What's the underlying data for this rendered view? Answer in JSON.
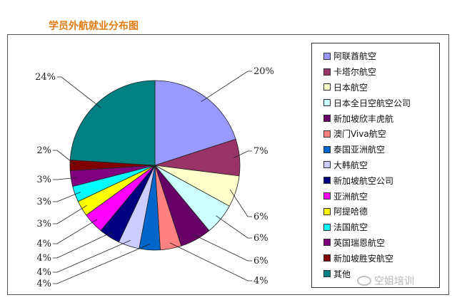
{
  "chart_data": {
    "type": "pie",
    "title": "学员外航就业分布图",
    "slices": [
      {
        "label": "阿联酋航空",
        "value": 20,
        "value_label": "20%",
        "color": "#9999ff"
      },
      {
        "label": "卡塔尔航空",
        "value": 7,
        "value_label": "7%",
        "color": "#993366"
      },
      {
        "label": "日本航空",
        "value": 6,
        "value_label": "6%",
        "color": "#ffffcc"
      },
      {
        "label": "日本全日空航空公司",
        "value": 6,
        "value_label": "6%",
        "color": "#ccffff"
      },
      {
        "label": "新加坡欣丰虎航",
        "value": 6,
        "value_label": "6%",
        "color": "#660066"
      },
      {
        "label": "澳门Viva航空",
        "value": 4,
        "value_label": "4%",
        "color": "#ff8080"
      },
      {
        "label": "泰国亚洲航空",
        "value": 4,
        "value_label": "4%",
        "color": "#0066cc"
      },
      {
        "label": "大韩航空",
        "value": 4,
        "value_label": "4%",
        "color": "#ccccff"
      },
      {
        "label": "新加坡航空公司",
        "value": 4,
        "value_label": "4%",
        "color": "#000080"
      },
      {
        "label": "亚洲航空",
        "value": 4,
        "value_label": "4%",
        "color": "#ff00ff"
      },
      {
        "label": "阿提哈德",
        "value": 3,
        "value_label": "3%",
        "color": "#ffff00"
      },
      {
        "label": "法国航空",
        "value": 3,
        "value_label": "3%",
        "color": "#00ffff"
      },
      {
        "label": "英国瑞恩航空",
        "value": 3,
        "value_label": "3%",
        "color": "#800080"
      },
      {
        "label": "新加坡胜安航空",
        "value": 2,
        "value_label": "2%",
        "color": "#800000"
      },
      {
        "label": "其他",
        "value": 24,
        "value_label": "24%",
        "color": "#008080"
      }
    ],
    "start_angle_deg": 0,
    "direction": "clockwise",
    "legend_position": "right"
  },
  "watermark": {
    "text": "空姐培训"
  }
}
